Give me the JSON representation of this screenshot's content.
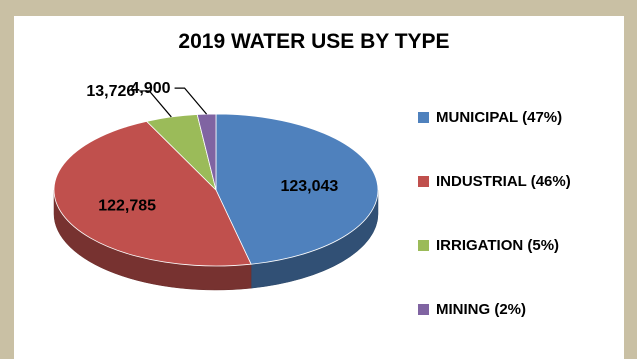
{
  "chart_data": {
    "type": "pie",
    "title": "2019 WATER USE BY TYPE",
    "three_d": true,
    "slices": [
      {
        "label": "MUNICIPAL (47%)",
        "value": 123043,
        "value_label": "123,043",
        "color": "#4f81bd"
      },
      {
        "label": "INDUSTRIAL (46%)",
        "value": 122785,
        "value_label": "122,785",
        "color": "#c0504d"
      },
      {
        "label": "IRRIGATION (5%)",
        "value": 13726,
        "value_label": "13,726",
        "color": "#9bbb59"
      },
      {
        "label": "MINING (2%)",
        "value": 4900,
        "value_label": "4,900",
        "color": "#8064a2"
      }
    ],
    "legend_position": "right"
  }
}
